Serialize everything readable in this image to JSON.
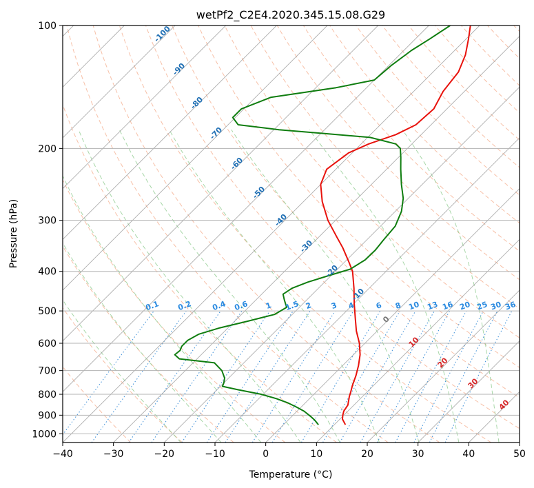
{
  "chart_data": {
    "type": "skew-t",
    "title": "wetPf2_C2E4.2020.345.15.08.G29",
    "xlabel": "Temperature (°C)",
    "ylabel": "Pressure (hPa)",
    "xlim": [
      -40,
      50
    ],
    "ylim": [
      1050,
      100
    ],
    "x_ticks": [
      -40,
      -30,
      -20,
      -10,
      0,
      10,
      20,
      30,
      40,
      50
    ],
    "x_tick_labels": [
      "−40",
      "−30",
      "−20",
      "−10",
      "0",
      "10",
      "20",
      "30",
      "40",
      "50"
    ],
    "y_ticks": [
      100,
      200,
      300,
      400,
      500,
      600,
      700,
      800,
      900,
      1000
    ],
    "y_tick_labels": [
      "100",
      "200",
      "300",
      "400",
      "500",
      "600",
      "700",
      "800",
      "900",
      "1000"
    ],
    "colors": {
      "temperature": "#e8120c",
      "dewpoint": "#0f7d0f",
      "dry_adiabat": "#f4a582",
      "moist_adiabat": "#8bc98b",
      "mixing_ratio": "#3d8fd8",
      "isotherm": "#9a9a9a",
      "grid": "#b3b3b3",
      "dry_label": "#1f6fb4",
      "mix_label": "#2a8ae0",
      "moist_label": "#d62728"
    },
    "series": [
      {
        "name": "temperature",
        "points": [
          {
            "p": 950,
            "t": 12.2
          },
          {
            "p": 920,
            "t": 10.5
          },
          {
            "p": 900,
            "t": 9.8
          },
          {
            "p": 880,
            "t": 9.2
          },
          {
            "p": 850,
            "t": 8.8
          },
          {
            "p": 810,
            "t": 7.4
          },
          {
            "p": 790,
            "t": 6.8
          },
          {
            "p": 760,
            "t": 5.8
          },
          {
            "p": 720,
            "t": 4.6
          },
          {
            "p": 680,
            "t": 3.1
          },
          {
            "p": 640,
            "t": 1.3
          },
          {
            "p": 600,
            "t": -1.1
          },
          {
            "p": 560,
            "t": -4.1
          },
          {
            "p": 520,
            "t": -6.9
          },
          {
            "p": 480,
            "t": -9.9
          },
          {
            "p": 440,
            "t": -13.0
          },
          {
            "p": 400,
            "t": -16.6
          },
          {
            "p": 380,
            "t": -19.1
          },
          {
            "p": 350,
            "t": -23.2
          },
          {
            "p": 330,
            "t": -26.4
          },
          {
            "p": 300,
            "t": -31.5
          },
          {
            "p": 270,
            "t": -36.3
          },
          {
            "p": 245,
            "t": -40.0
          },
          {
            "p": 225,
            "t": -41.8
          },
          {
            "p": 205,
            "t": -40.7
          },
          {
            "p": 195,
            "t": -38.5
          },
          {
            "p": 185,
            "t": -35.0
          },
          {
            "p": 175,
            "t": -33.0
          },
          {
            "p": 160,
            "t": -32.6
          },
          {
            "p": 145,
            "t": -34.2
          },
          {
            "p": 130,
            "t": -35.0
          },
          {
            "p": 118,
            "t": -37.0
          },
          {
            "p": 108,
            "t": -39.5
          },
          {
            "p": 100,
            "t": -41.8
          }
        ]
      },
      {
        "name": "dewpoint",
        "points": [
          {
            "p": 950,
            "t": 6.9
          },
          {
            "p": 925,
            "t": 5.2
          },
          {
            "p": 905,
            "t": 3.6
          },
          {
            "p": 880,
            "t": 1.4
          },
          {
            "p": 860,
            "t": -0.9
          },
          {
            "p": 840,
            "t": -3.4
          },
          {
            "p": 820,
            "t": -6.5
          },
          {
            "p": 800,
            "t": -10.4
          },
          {
            "p": 780,
            "t": -15.8
          },
          {
            "p": 765,
            "t": -19.6
          },
          {
            "p": 750,
            "t": -20.0
          },
          {
            "p": 730,
            "t": -20.8
          },
          {
            "p": 700,
            "t": -22.8
          },
          {
            "p": 670,
            "t": -25.8
          },
          {
            "p": 655,
            "t": -33.5
          },
          {
            "p": 640,
            "t": -35.2
          },
          {
            "p": 625,
            "t": -35.0
          },
          {
            "p": 610,
            "t": -35.5
          },
          {
            "p": 590,
            "t": -35.5
          },
          {
            "p": 570,
            "t": -34.5
          },
          {
            "p": 550,
            "t": -31.6
          },
          {
            "p": 530,
            "t": -27.5
          },
          {
            "p": 510,
            "t": -23.5
          },
          {
            "p": 490,
            "t": -22.5
          },
          {
            "p": 470,
            "t": -24.4
          },
          {
            "p": 455,
            "t": -25.8
          },
          {
            "p": 440,
            "t": -25.2
          },
          {
            "p": 425,
            "t": -23.3
          },
          {
            "p": 410,
            "t": -20.5
          },
          {
            "p": 395,
            "t": -17.5
          },
          {
            "p": 375,
            "t": -16.4
          },
          {
            "p": 355,
            "t": -16.3
          },
          {
            "p": 335,
            "t": -16.7
          },
          {
            "p": 310,
            "t": -17.1
          },
          {
            "p": 285,
            "t": -18.8
          },
          {
            "p": 265,
            "t": -21.0
          },
          {
            "p": 245,
            "t": -24.1
          },
          {
            "p": 225,
            "t": -27.2
          },
          {
            "p": 210,
            "t": -29.6
          },
          {
            "p": 200,
            "t": -31.4
          },
          {
            "p": 195,
            "t": -33.2
          },
          {
            "p": 188,
            "t": -39.5
          },
          {
            "p": 184,
            "t": -49.0
          },
          {
            "p": 180,
            "t": -59.0
          },
          {
            "p": 175,
            "t": -68.0
          },
          {
            "p": 168,
            "t": -70.5
          },
          {
            "p": 160,
            "t": -70.5
          },
          {
            "p": 150,
            "t": -67.0
          },
          {
            "p": 142,
            "t": -56.0
          },
          {
            "p": 136,
            "t": -50.0
          },
          {
            "p": 125,
            "t": -49.5
          },
          {
            "p": 115,
            "t": -48.5
          },
          {
            "p": 108,
            "t": -47.2
          },
          {
            "p": 100,
            "t": -45.8
          }
        ]
      }
    ],
    "dry_adiabat_labels": [
      "-100",
      "-90",
      "-80",
      "-70",
      "-60",
      "-50",
      "-40",
      "-30",
      "-20",
      "-10"
    ],
    "mixing_ratio_labels": [
      "0.1",
      "0.2",
      "0.4",
      "0.6",
      "1",
      "1.5",
      "2",
      "3",
      "4",
      "6",
      "8",
      "10",
      "13",
      "16",
      "20",
      "25",
      "30",
      "36"
    ],
    "moist_adiabat_labels": [
      "0",
      "10",
      "20",
      "30",
      "40"
    ]
  }
}
